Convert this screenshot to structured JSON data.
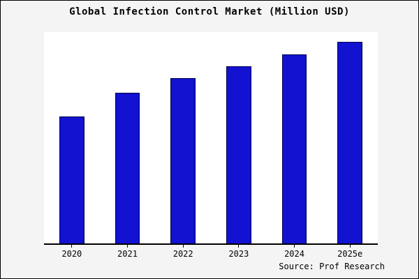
{
  "title": "Global Infection Control Market (Million USD)",
  "source": "Source: Prof Research",
  "colors": {
    "bar_fill": "#1212d0",
    "bar_edge": "#00004d",
    "page_background": "#f4f4f4",
    "plot_background": "#ffffff",
    "axis": "#000000"
  },
  "chart_data": {
    "type": "bar",
    "title": "Global Infection Control Market (Million USD)",
    "categories": [
      "2020",
      "2021",
      "2022",
      "2023",
      "2024",
      "2025e"
    ],
    "values": [
      63,
      75,
      82,
      88,
      94,
      100
    ],
    "xlabel": "",
    "ylabel": "",
    "ylim": [
      0,
      105
    ],
    "grid": false,
    "legend": false,
    "y_axis_visible": false
  }
}
